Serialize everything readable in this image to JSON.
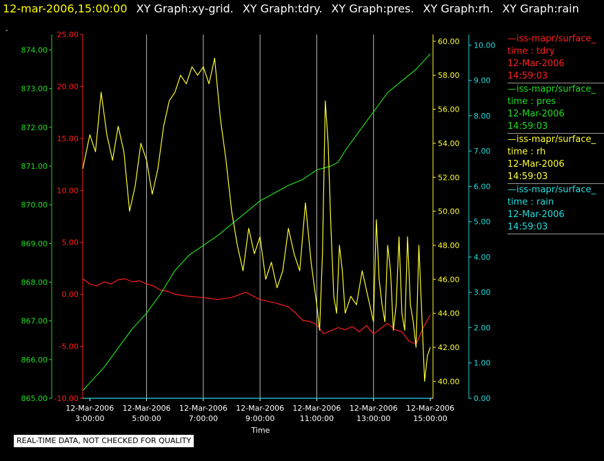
{
  "header": {
    "timestamp": "12-mar-2006,15:00:00",
    "graphs": [
      "XY Graph:xy-grid.",
      "XY Graph:tdry.",
      "XY Graph:pres.",
      "XY Graph:rh.",
      "XY Graph:rain"
    ]
  },
  "dot": ".",
  "disclaimer": "REAL-TIME DATA, NOT CHECKED FOR QUALITY",
  "legend": [
    {
      "line": "—iss-mapr/surface_",
      "var": "time : tdry",
      "date": "12-Mar-2006",
      "time": "14:59:03",
      "color": "#ff2020"
    },
    {
      "line": "—iss-mapr/surface_",
      "var": "time : pres",
      "date": "12-Mar-2006",
      "time": "14:59:03",
      "color": "#22dd22"
    },
    {
      "line": "—iss-mapr/surface_",
      "var": "time : rh",
      "date": "12-Mar-2006",
      "time": "14:59:03",
      "color": "#ffff33"
    },
    {
      "line": "—iss-mapr/surface_",
      "var": "time : rain",
      "date": "12-Mar-2006",
      "time": "14:59:03",
      "color": "#22dddd"
    }
  ],
  "chart_data": {
    "type": "line",
    "xlabel": "Time",
    "xlim": [
      2.75,
      15.0
    ],
    "x_ticks": [
      {
        "hour": 3,
        "date": "12-Mar-2006",
        "time": "3:00:00"
      },
      {
        "hour": 5,
        "date": "12-Mar-2006",
        "time": "5:00:00"
      },
      {
        "hour": 7,
        "date": "12-Mar-2006",
        "time": "7:00:00"
      },
      {
        "hour": 9,
        "date": "12-Mar-2006",
        "time": "9:00:00"
      },
      {
        "hour": 11,
        "date": "12-Mar-2006",
        "time": "11:00:00"
      },
      {
        "hour": 13,
        "date": "12-Mar-2006",
        "time": "13:00:00"
      },
      {
        "hour": 15,
        "date": "12-Mar-2006",
        "time": "15:00:00"
      }
    ],
    "axes": {
      "tdry": {
        "range": [
          -10,
          25
        ],
        "ticks": [
          "-10.00",
          "-5.00",
          "0.00",
          "5.00",
          "10.00",
          "15.00",
          "20.00",
          "25.00"
        ],
        "color": "#ff2020"
      },
      "pres": {
        "range": [
          865,
          874.4
        ],
        "ticks": [
          "865.00",
          "866.00",
          "867.00",
          "868.00",
          "869.00",
          "870.00",
          "871.00",
          "872.00",
          "873.00",
          "874.00"
        ],
        "color": "#22dd22"
      },
      "rh": {
        "range": [
          39,
          60.4
        ],
        "ticks": [
          "40.00",
          "42.00",
          "44.00",
          "46.00",
          "48.00",
          "50.00",
          "52.00",
          "54.00",
          "56.00",
          "58.00",
          "60.00"
        ],
        "color": "#ffff33"
      },
      "rain": {
        "range": [
          0,
          10.3
        ],
        "ticks": [
          "0.00",
          "1.00",
          "2.00",
          "3.00",
          "4.00",
          "5.00",
          "6.00",
          "7.00",
          "8.00",
          "9.00",
          "10.00"
        ],
        "color": "#22dddd"
      }
    },
    "series": [
      {
        "key": "tdry",
        "color": "#ff2020",
        "x": [
          2.75,
          3.0,
          3.25,
          3.5,
          3.75,
          4.0,
          4.25,
          4.5,
          4.75,
          5.0,
          5.25,
          5.5,
          5.75,
          6.0,
          6.5,
          7.0,
          7.5,
          8.0,
          8.5,
          9.0,
          9.5,
          10.0,
          10.25,
          10.5,
          10.75,
          11.0,
          11.25,
          11.5,
          11.75,
          12.0,
          12.25,
          12.5,
          12.75,
          13.0,
          13.25,
          13.5,
          13.75,
          14.0,
          14.25,
          14.5,
          14.75,
          15.0
        ],
        "y": [
          1.5,
          1.0,
          0.8,
          1.2,
          1.0,
          1.4,
          1.5,
          1.2,
          1.3,
          1.0,
          0.8,
          0.4,
          0.3,
          0.0,
          -0.2,
          -0.3,
          -0.5,
          -0.3,
          0.2,
          -0.5,
          -0.8,
          -1.2,
          -1.8,
          -2.5,
          -2.6,
          -2.9,
          -3.8,
          -3.5,
          -3.2,
          -3.4,
          -3.1,
          -3.6,
          -3.0,
          -3.8,
          -3.3,
          -2.8,
          -3.4,
          -3.6,
          -4.5,
          -4.8,
          -3.2,
          -2.0
        ]
      },
      {
        "key": "pres",
        "color": "#22dd22",
        "x": [
          2.75,
          3.0,
          3.5,
          4.0,
          4.5,
          5.0,
          5.5,
          6.0,
          6.5,
          7.0,
          7.5,
          8.0,
          8.5,
          9.0,
          9.5,
          10.0,
          10.5,
          11.0,
          11.5,
          11.75,
          12.0,
          12.5,
          13.0,
          13.5,
          14.0,
          14.5,
          15.0
        ],
        "y": [
          865.2,
          865.4,
          865.8,
          866.3,
          866.8,
          867.2,
          867.7,
          868.3,
          868.7,
          868.95,
          869.2,
          869.5,
          869.8,
          870.1,
          870.3,
          870.5,
          870.65,
          870.9,
          871.0,
          871.1,
          871.4,
          871.9,
          872.4,
          872.9,
          873.2,
          873.5,
          873.9
        ]
      },
      {
        "key": "rh",
        "color": "#ffff33",
        "x": [
          2.75,
          3.0,
          3.2,
          3.4,
          3.6,
          3.8,
          4.0,
          4.2,
          4.4,
          4.6,
          4.8,
          5.0,
          5.2,
          5.4,
          5.6,
          5.8,
          6.0,
          6.2,
          6.4,
          6.6,
          6.8,
          7.0,
          7.2,
          7.4,
          7.6,
          7.8,
          8.0,
          8.2,
          8.4,
          8.6,
          8.8,
          9.0,
          9.2,
          9.4,
          9.6,
          9.8,
          10.0,
          10.2,
          10.4,
          10.6,
          10.8,
          11.0,
          11.1,
          11.2,
          11.3,
          11.4,
          11.5,
          11.6,
          11.7,
          11.8,
          11.9,
          12.0,
          12.2,
          12.4,
          12.6,
          12.8,
          13.0,
          13.1,
          13.2,
          13.3,
          13.4,
          13.5,
          13.6,
          13.7,
          13.8,
          13.9,
          14.0,
          14.1,
          14.2,
          14.3,
          14.4,
          14.5,
          14.6,
          14.7,
          14.8,
          14.9,
          15.0
        ],
        "y": [
          52.5,
          54.5,
          53.5,
          57.0,
          54.5,
          53.0,
          55.0,
          53.5,
          50.0,
          51.5,
          54.0,
          53.0,
          51.0,
          52.5,
          55.0,
          56.5,
          57.0,
          58.0,
          57.5,
          58.5,
          58.0,
          58.5,
          57.5,
          59.0,
          55.5,
          53.0,
          50.0,
          48.0,
          46.5,
          49.0,
          47.5,
          48.5,
          46.0,
          47.0,
          45.5,
          46.5,
          49.0,
          47.5,
          46.5,
          50.5,
          47.0,
          44.5,
          43.0,
          47.5,
          56.5,
          54.0,
          49.0,
          45.0,
          44.0,
          48.0,
          46.5,
          44.0,
          45.0,
          44.5,
          46.5,
          45.0,
          43.5,
          49.5,
          46.0,
          44.5,
          43.5,
          48.0,
          46.5,
          43.0,
          44.5,
          48.5,
          44.0,
          43.0,
          48.5,
          44.5,
          43.5,
          42.0,
          48.0,
          44.0,
          40.0,
          41.5,
          42.0
        ]
      },
      {
        "key": "rain",
        "color": "#22dddd",
        "x": [
          2.75,
          15.0
        ],
        "y": [
          0.0,
          0.0
        ]
      }
    ]
  }
}
